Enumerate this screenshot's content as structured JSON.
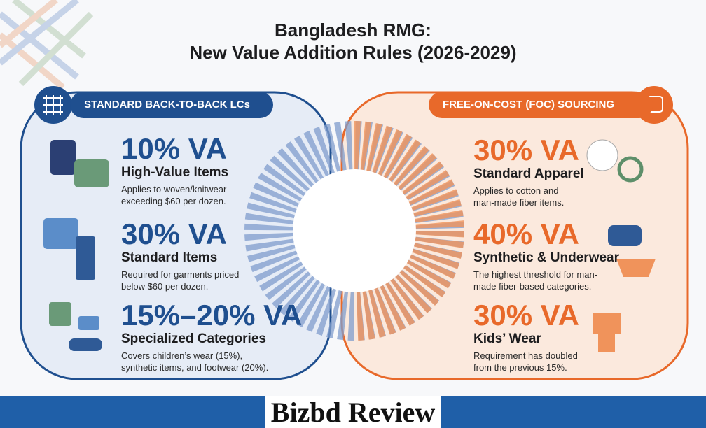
{
  "header": {
    "title_lines": [
      "Bangladesh RMG:",
      "New Value Addition Rules (2026-2029)"
    ]
  },
  "left": {
    "label": "STANDARD BACK-TO-BACK LCs",
    "items": [
      {
        "rate": "10% VA",
        "title": "High-Value Items",
        "description": [
          "Applies to woven/knitwear",
          "exceeding $60 per dozen."
        ]
      },
      {
        "rate": "30% VA",
        "title": "Standard Items",
        "description": [
          "Required for garments priced",
          "below $60 per dozen."
        ]
      },
      {
        "rate": "15%–20% VA",
        "title": "Specialized Categories",
        "description": [
          "Covers children’s wear (15%),",
          "synthetic items, and footwear (20%)."
        ]
      }
    ]
  },
  "right": {
    "label": "FREE-ON-COST (FOC) SOURCING",
    "items": [
      {
        "rate": "30% VA",
        "title": "Standard Apparel",
        "description": [
          "Applies to cotton and",
          "man-made fiber items."
        ]
      },
      {
        "rate": "40% VA",
        "title": "Synthetic & Underwear",
        "description": [
          "The highest threshold for man-",
          "made fiber-based categories."
        ]
      },
      {
        "rate": "30% VA",
        "title": "Kids’ Wear",
        "description": [
          "Requirement has doubled",
          "from the previous 15%."
        ]
      }
    ]
  },
  "footer": {
    "brand": "Bizbd Review"
  }
}
